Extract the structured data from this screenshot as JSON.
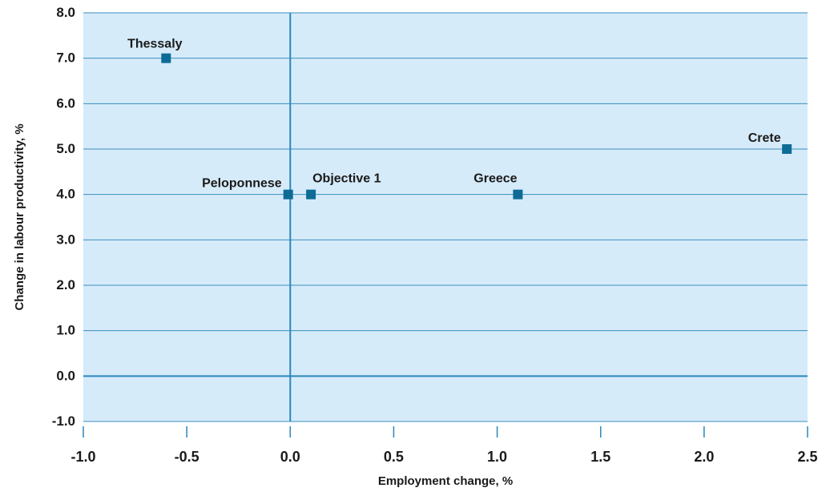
{
  "chart_data": {
    "type": "scatter",
    "title": "",
    "xlabel": "Employment change, %",
    "ylabel": "Change in labour productivity, %",
    "xlim": [
      -1.0,
      2.5
    ],
    "ylim": [
      -1.0,
      8.0
    ],
    "x_ticks": [
      "-1.0",
      "-0.5",
      "0.0",
      "0.5",
      "1.0",
      "1.5",
      "2.0",
      "2.5"
    ],
    "y_ticks": [
      "-1.0",
      "0.0",
      "1.0",
      "2.0",
      "3.0",
      "4.0",
      "5.0",
      "6.0",
      "7.0",
      "8.0"
    ],
    "grid": true,
    "points": [
      {
        "label": "Thessaly",
        "x": -0.6,
        "y": 7.0
      },
      {
        "label": "Peloponnese",
        "x": -0.01,
        "y": 4.0
      },
      {
        "label": "Objective 1",
        "x": 0.1,
        "y": 4.0
      },
      {
        "label": "Greece",
        "x": 1.1,
        "y": 4.0
      },
      {
        "label": "Crete",
        "x": 2.4,
        "y": 5.0
      }
    ],
    "colors": {
      "plot_background": "#d6ebf9",
      "grid": "#3a8fbf",
      "zero_lines": "#2a86bd",
      "marker": "#0d6b96"
    }
  }
}
